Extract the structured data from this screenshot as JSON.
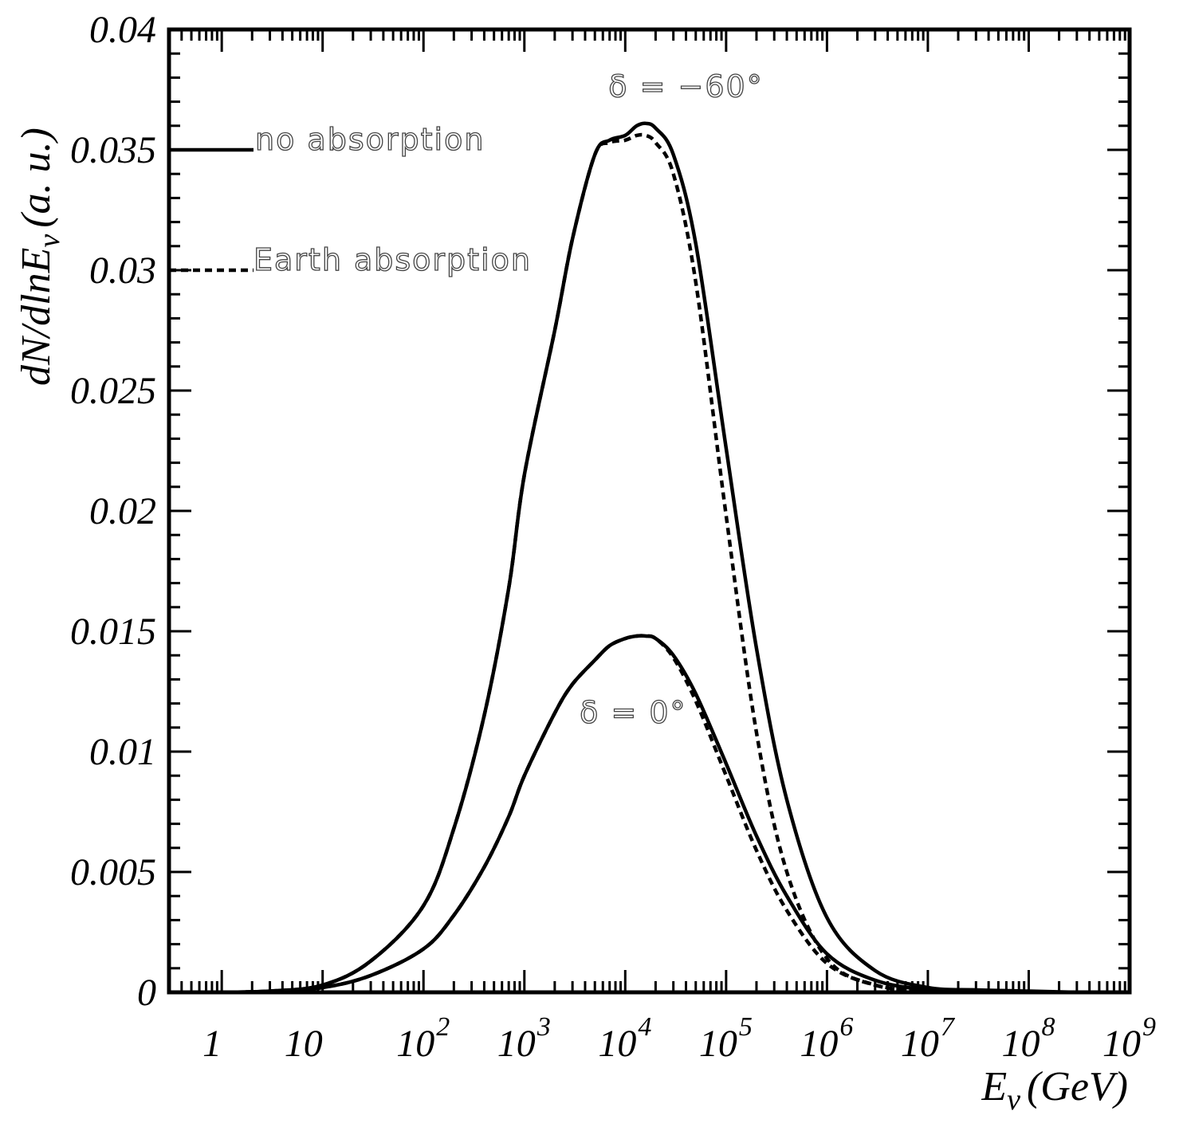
{
  "chart_data": {
    "type": "line",
    "title": "",
    "xlabel": "E",
    "xlabel_sub": "ν",
    "xlabel_unit": "(GeV)",
    "ylabel": "dN/dlnE",
    "ylabel_sub": "ν",
    "ylabel_unit": "(a. u.)",
    "xscale": "log",
    "xlim": [
      0.3,
      1000000000
    ],
    "ylim": [
      0,
      0.04
    ],
    "yticks": [
      "0",
      "0.005",
      "0.01",
      "0.015",
      "0.02",
      "0.025",
      "0.03",
      "0.035",
      "0.04"
    ],
    "xticks": [
      {
        "base": "1",
        "exp": ""
      },
      {
        "base": "10",
        "exp": ""
      },
      {
        "base": "10",
        "exp": "2"
      },
      {
        "base": "10",
        "exp": "3"
      },
      {
        "base": "10",
        "exp": "4"
      },
      {
        "base": "10",
        "exp": "5"
      },
      {
        "base": "10",
        "exp": "6"
      },
      {
        "base": "10",
        "exp": "7"
      },
      {
        "base": "10",
        "exp": "8"
      },
      {
        "base": "10",
        "exp": "9"
      }
    ],
    "legend": [
      {
        "label": "no absorption",
        "style": "solid"
      },
      {
        "label": "Earth absorption",
        "style": "dashed"
      }
    ],
    "annotations": [
      {
        "text": "δ = −60°",
        "x": 40000,
        "y": 0.0372
      },
      {
        "text": "δ = 0°",
        "x": 12000,
        "y": 0.0112
      }
    ],
    "series": [
      {
        "group": "δ = −60°",
        "style": "solid",
        "x": [
          1,
          3,
          10,
          30,
          100,
          200,
          400,
          700,
          1000,
          2000,
          3000,
          5000,
          7000,
          10000,
          13000,
          16000,
          20000,
          30000,
          50000,
          100000,
          200000,
          400000,
          1000000,
          3000000,
          10000000,
          30000000,
          100000000,
          300000000
        ],
        "y": [
          0,
          5e-05,
          0.0003,
          0.0013,
          0.0036,
          0.0068,
          0.0115,
          0.0168,
          0.0215,
          0.0275,
          0.0313,
          0.0348,
          0.0354,
          0.0356,
          0.036,
          0.0361,
          0.0359,
          0.0348,
          0.0311,
          0.0226,
          0.0143,
          0.008,
          0.0031,
          0.0009,
          0.0002,
          0.0001,
          5e-05,
          0
        ]
      },
      {
        "group": "δ = −60°",
        "style": "dashed",
        "x": [
          1,
          3,
          10,
          30,
          100,
          200,
          400,
          700,
          1000,
          2000,
          3000,
          5000,
          7000,
          10000,
          13000,
          16000,
          20000,
          30000,
          50000,
          100000,
          200000,
          400000,
          1000000,
          3000000,
          10000000,
          30000000,
          100000000
        ],
        "y": [
          0,
          5e-05,
          0.0003,
          0.0013,
          0.0036,
          0.0068,
          0.0115,
          0.0168,
          0.0215,
          0.0275,
          0.0313,
          0.0348,
          0.0353,
          0.0354,
          0.0356,
          0.0356,
          0.0353,
          0.034,
          0.0295,
          0.0198,
          0.0108,
          0.005,
          0.0014,
          0.0003,
          5e-05,
          0,
          0
        ]
      },
      {
        "group": "δ = 0°",
        "style": "solid",
        "x": [
          1,
          3,
          10,
          30,
          100,
          200,
          400,
          700,
          1000,
          2000,
          3000,
          5000,
          7000,
          10000,
          13000,
          16000,
          20000,
          30000,
          50000,
          100000,
          200000,
          400000,
          1000000,
          3000000,
          10000000,
          30000000,
          100000000
        ],
        "y": [
          0,
          4e-05,
          0.0002,
          0.0007,
          0.0018,
          0.0032,
          0.0052,
          0.0073,
          0.009,
          0.0116,
          0.0128,
          0.0138,
          0.0144,
          0.0147,
          0.0148,
          0.0148,
          0.0147,
          0.014,
          0.0124,
          0.0095,
          0.0065,
          0.004,
          0.0016,
          0.0005,
          0.0001,
          3e-05,
          0
        ]
      },
      {
        "group": "δ = 0°",
        "style": "dashed",
        "x": [
          1,
          3,
          10,
          30,
          100,
          200,
          400,
          700,
          1000,
          2000,
          3000,
          5000,
          7000,
          10000,
          13000,
          16000,
          20000,
          30000,
          50000,
          100000,
          200000,
          400000,
          1000000,
          3000000,
          10000000,
          30000000,
          100000000
        ],
        "y": [
          0,
          4e-05,
          0.0002,
          0.0007,
          0.0018,
          0.0032,
          0.0052,
          0.0073,
          0.009,
          0.0116,
          0.0128,
          0.0138,
          0.0144,
          0.0147,
          0.0148,
          0.0148,
          0.0147,
          0.0139,
          0.0121,
          0.009,
          0.0059,
          0.0034,
          0.0012,
          0.0003,
          5e-05,
          0,
          0
        ]
      }
    ]
  }
}
